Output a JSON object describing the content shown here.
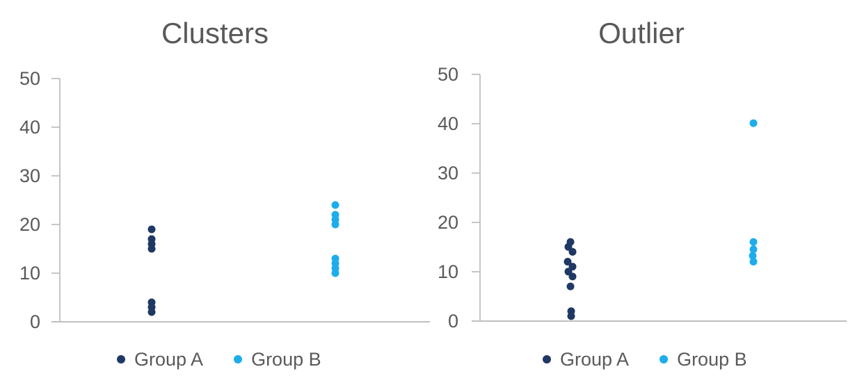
{
  "page": {
    "background": "#FFFFFF",
    "text_color": "#595959",
    "axis_color": "#BFBFBF"
  },
  "chart_data": [
    {
      "type": "scatter",
      "title": "Clusters",
      "xlabel": "",
      "ylabel": "",
      "ylim": [
        0,
        50
      ],
      "y_ticks": [
        0,
        10,
        20,
        30,
        40,
        50
      ],
      "grid": false,
      "legend_position": "bottom",
      "series": [
        {
          "name": "Group A",
          "color": "#1F3864",
          "values": [
            19,
            17,
            16,
            15,
            4,
            3,
            2
          ]
        },
        {
          "name": "Group B",
          "color": "#1EADEA",
          "values": [
            24,
            22,
            21,
            20,
            13,
            12,
            11,
            10
          ]
        }
      ]
    },
    {
      "type": "scatter",
      "title": "Outlier",
      "xlabel": "",
      "ylabel": "",
      "ylim": [
        0,
        50
      ],
      "y_ticks": [
        0,
        10,
        20,
        30,
        40,
        50
      ],
      "grid": false,
      "legend_position": "bottom",
      "series": [
        {
          "name": "Group A",
          "color": "#1F3864",
          "values": [
            16,
            15,
            14,
            12,
            11,
            10,
            9,
            7,
            2,
            1
          ],
          "dx": [
            0,
            -3,
            3,
            -4,
            3,
            -3,
            3,
            0,
            1,
            1
          ]
        },
        {
          "name": "Group B",
          "color": "#1EADEA",
          "values": [
            40,
            16,
            14.5,
            13.2,
            12
          ],
          "dx": [
            0,
            0,
            0,
            -1,
            0
          ]
        }
      ]
    }
  ]
}
